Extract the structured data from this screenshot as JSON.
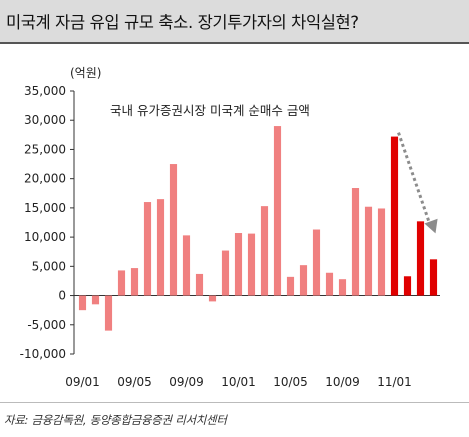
{
  "page": {
    "title": "미국계 자금 유입 규모 축소. 장기투가자의 차익실현?",
    "source": "자료: 금융감독원, 동양종합금융증권 리서치센터"
  },
  "chart_data": {
    "type": "bar",
    "subtitle": "국내 유가증권시장 미국계 순매수 금액",
    "unit_label": "(억원)",
    "ylim": [
      -10000,
      35000
    ],
    "yticks": [
      -10000,
      -5000,
      0,
      5000,
      10000,
      15000,
      20000,
      25000,
      30000,
      35000
    ],
    "ytick_labels": [
      "-10,000",
      "-5,000",
      "0",
      "5,000",
      "10,000",
      "15,000",
      "20,000",
      "25,000",
      "30,000",
      "35,000"
    ],
    "categories": [
      "09/01",
      "09/02",
      "09/03",
      "09/04",
      "09/05",
      "09/06",
      "09/07",
      "09/08",
      "09/09",
      "09/10",
      "09/11",
      "09/12",
      "10/01",
      "10/02",
      "10/03",
      "10/04",
      "10/05",
      "10/06",
      "10/07",
      "10/08",
      "10/09",
      "10/10",
      "10/11",
      "10/12",
      "11/01",
      "11/02",
      "11/03",
      "11/04"
    ],
    "x_tick_labels": [
      "09/01",
      "09/05",
      "09/09",
      "10/01",
      "10/05",
      "10/09",
      "11/01"
    ],
    "values": [
      -2500,
      -1500,
      -6000,
      4300,
      4700,
      16000,
      16500,
      22500,
      10300,
      3700,
      -1000,
      7700,
      10700,
      10600,
      15300,
      29000,
      3200,
      5200,
      11300,
      3900,
      2800,
      18400,
      15200,
      14900,
      27200,
      3300,
      12700,
      6200
    ],
    "highlight_from_index": 24,
    "colors": {
      "normal": "#f08080",
      "highlight": "#e00000",
      "arrow": "#8c8c8c"
    },
    "grid": false,
    "annotation": "dotted-trend-arrow-down"
  }
}
